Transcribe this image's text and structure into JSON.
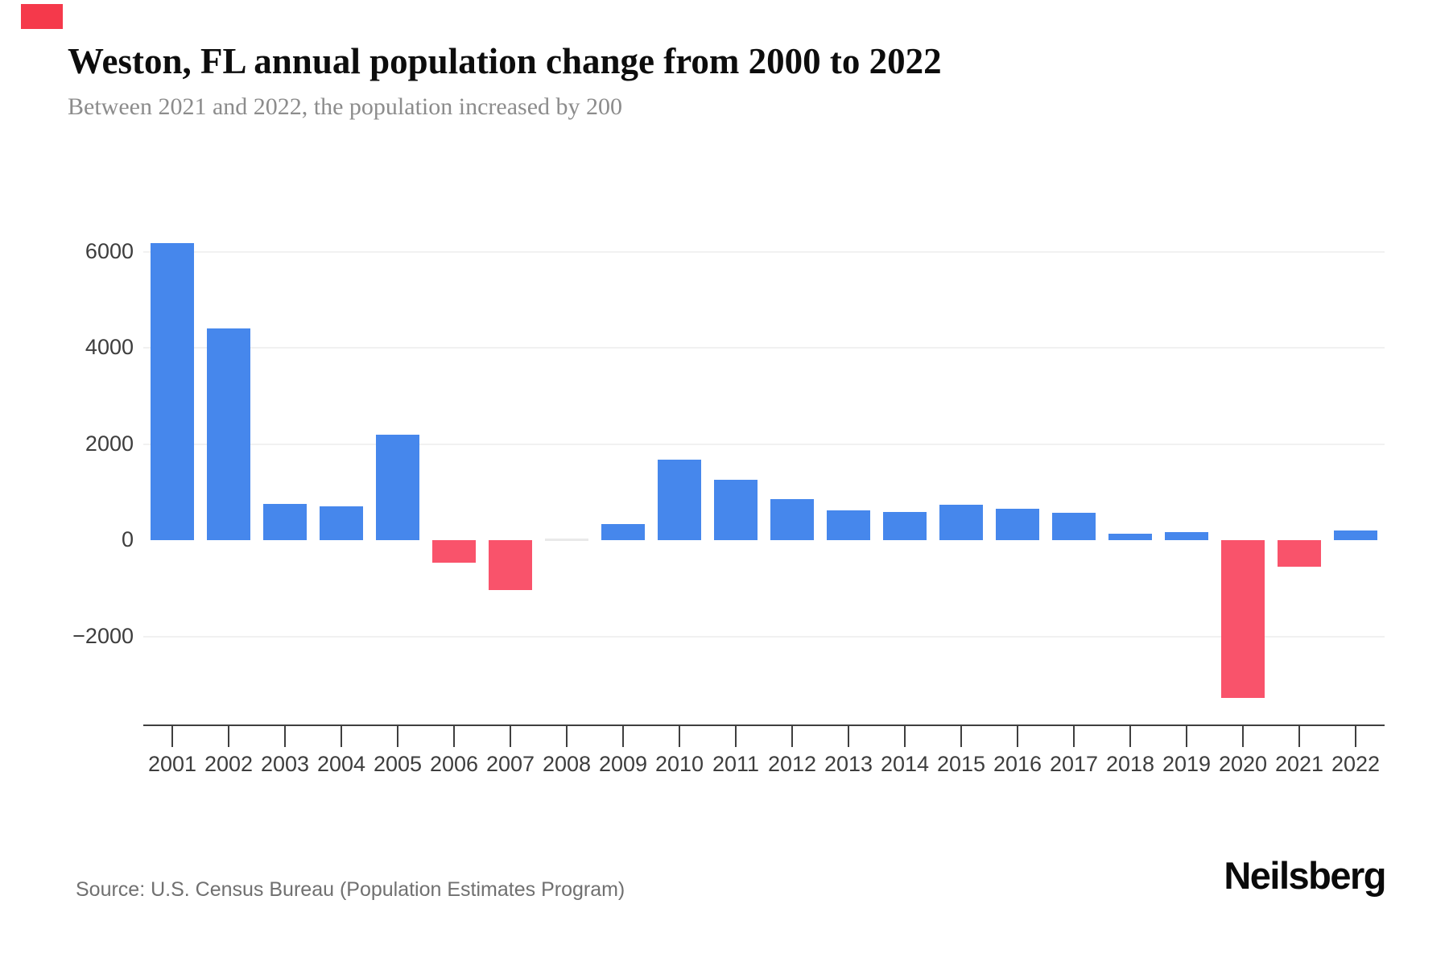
{
  "page": {
    "corner_marker_color": "#f5394b",
    "background": "#ffffff"
  },
  "header": {
    "title": "Weston, FL annual population change from 2000 to 2022",
    "subtitle": "Between 2021 and 2022, the population increased by 200"
  },
  "footer": {
    "source": "Source: U.S. Census Bureau (Population Estimates Program)",
    "brand": "Neilsberg"
  },
  "chart_data": {
    "type": "bar",
    "title": "Weston, FL annual population change from 2000 to 2022",
    "subtitle": "Between 2021 and 2022, the population increased by 200",
    "xlabel": "",
    "ylabel": "",
    "categories": [
      "2001",
      "2002",
      "2003",
      "2004",
      "2005",
      "2006",
      "2007",
      "2008",
      "2009",
      "2010",
      "2011",
      "2012",
      "2013",
      "2014",
      "2015",
      "2016",
      "2017",
      "2018",
      "2019",
      "2020",
      "2021",
      "2022"
    ],
    "values": [
      6180,
      4400,
      760,
      700,
      2190,
      -470,
      -1040,
      0,
      330,
      1680,
      1250,
      850,
      620,
      580,
      740,
      650,
      570,
      140,
      160,
      -3280,
      -550,
      200
    ],
    "y_ticks": [
      6000,
      4000,
      2000,
      0,
      -2000
    ],
    "y_tick_labels": [
      "6000",
      "4000",
      "2000",
      "0",
      "−2000"
    ],
    "ylim": [
      -3850,
      6950
    ],
    "grid": "horizontal-light, no line at zero",
    "legend": "none",
    "colors": {
      "positive": "#4687ec",
      "negative": "#f9536b",
      "zero": "#e9e9e9",
      "gridline": "#f1f1f1",
      "axis": "#3f3f3f"
    }
  }
}
